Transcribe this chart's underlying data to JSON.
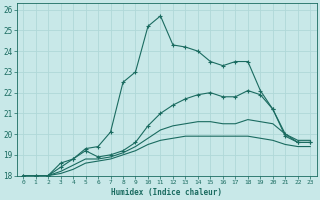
{
  "bg_color": "#c8e8e8",
  "grid_color": "#b0d8d8",
  "line_color": "#1a6b60",
  "xlabel": "Humidex (Indice chaleur)",
  "xlim": [
    -0.5,
    23.5
  ],
  "ylim": [
    18,
    26.3
  ],
  "yticks": [
    18,
    19,
    20,
    21,
    22,
    23,
    24,
    25,
    26
  ],
  "xticks": [
    0,
    1,
    2,
    3,
    4,
    5,
    6,
    7,
    8,
    9,
    10,
    11,
    12,
    13,
    14,
    15,
    16,
    17,
    18,
    19,
    20,
    21,
    22,
    23
  ],
  "series": [
    {
      "x": [
        0,
        1,
        2,
        3,
        4,
        5,
        6,
        7,
        8,
        9,
        10,
        11,
        12,
        13,
        14,
        15,
        16,
        17,
        18,
        19,
        20,
        21,
        22,
        23
      ],
      "y": [
        18.0,
        18.0,
        18.0,
        18.6,
        18.8,
        19.3,
        19.4,
        20.1,
        22.5,
        23.0,
        25.2,
        25.7,
        24.3,
        24.2,
        24.0,
        23.5,
        23.3,
        23.5,
        23.5,
        22.1,
        21.2,
        19.9,
        19.6,
        19.6
      ],
      "marker": "+",
      "markersize": 3.5,
      "linewidth": 0.8
    },
    {
      "x": [
        0,
        1,
        2,
        3,
        4,
        5,
        6,
        7,
        8,
        9,
        10,
        11,
        12,
        13,
        14,
        15,
        16,
        17,
        18,
        19,
        20,
        21,
        22,
        23
      ],
      "y": [
        18.0,
        18.0,
        18.0,
        18.4,
        18.8,
        19.2,
        18.9,
        19.0,
        19.2,
        19.6,
        20.4,
        21.0,
        21.4,
        21.7,
        21.9,
        22.0,
        21.8,
        21.8,
        22.1,
        21.9,
        21.2,
        20.0,
        19.6,
        19.6
      ],
      "marker": "+",
      "markersize": 3.0,
      "linewidth": 0.8
    },
    {
      "x": [
        0,
        1,
        2,
        3,
        4,
        5,
        6,
        7,
        8,
        9,
        10,
        11,
        12,
        13,
        14,
        15,
        16,
        17,
        18,
        19,
        20,
        21,
        22,
        23
      ],
      "y": [
        18.0,
        18.0,
        18.0,
        18.2,
        18.5,
        18.8,
        18.8,
        18.9,
        19.1,
        19.4,
        19.8,
        20.2,
        20.4,
        20.5,
        20.6,
        20.6,
        20.5,
        20.5,
        20.7,
        20.6,
        20.5,
        20.0,
        19.7,
        19.7
      ],
      "marker": null,
      "markersize": 0,
      "linewidth": 0.8
    },
    {
      "x": [
        0,
        1,
        2,
        3,
        4,
        5,
        6,
        7,
        8,
        9,
        10,
        11,
        12,
        13,
        14,
        15,
        16,
        17,
        18,
        19,
        20,
        21,
        22,
        23
      ],
      "y": [
        18.0,
        18.0,
        18.0,
        18.1,
        18.3,
        18.6,
        18.7,
        18.8,
        19.0,
        19.2,
        19.5,
        19.7,
        19.8,
        19.9,
        19.9,
        19.9,
        19.9,
        19.9,
        19.9,
        19.8,
        19.7,
        19.5,
        19.4,
        19.4
      ],
      "marker": null,
      "markersize": 0,
      "linewidth": 0.8
    }
  ]
}
